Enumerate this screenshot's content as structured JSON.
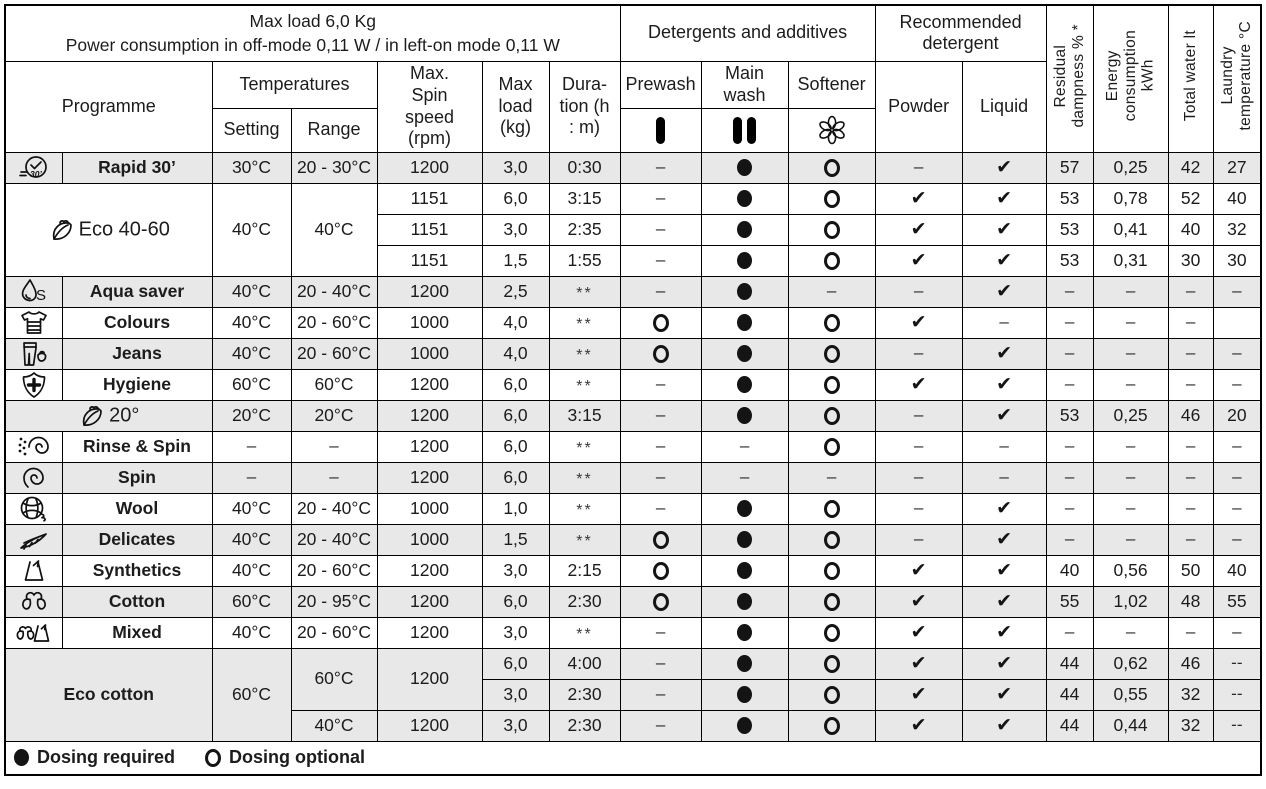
{
  "colors": {
    "row_shade": "#e8e8e8",
    "border": "#000000",
    "text": "#1c1c1c"
  },
  "header": {
    "note": "Max load 6,0 Kg\nPower consumption in off-mode 0,11 W / in left-on mode 0,11 W",
    "detergents_title": "Detergents and additives",
    "recommended_title": "Recommended\ndetergent",
    "programme": "Programme",
    "temperatures": "Temperatures",
    "setting": "Setting",
    "range": "Range",
    "spin": "Max.\nSpin\nspeed\n(rpm)",
    "load": "Max\nload\n(kg)",
    "duration": "Dura-\ntion (h\n: m)",
    "prewash": "Prewash",
    "mainwash": "Main\nwash",
    "softener": "Softener",
    "powder": "Powder",
    "liquid": "Liquid",
    "residual": "Residual\ndampness % *",
    "energy": "Energy\nconsumption\nkWh",
    "water": "Total water lt",
    "laundry": "Laundry\ntemperature °C"
  },
  "legend": {
    "required": "Dosing required",
    "optional": "Dosing optional"
  },
  "table": {
    "rows": [
      {
        "shaded": true,
        "cells": [
          {
            "icon": "rapid-30-clock-icon"
          },
          {
            "t": "Rapid 30’",
            "b": 1
          },
          {
            "t": "30°C"
          },
          {
            "t": "20 - 30°C"
          },
          {
            "t": "1200"
          },
          {
            "t": "3,0"
          },
          {
            "t": "0:30"
          },
          {
            "s": "dash"
          },
          {
            "s": "dot"
          },
          {
            "s": "circle"
          },
          {
            "s": "dash"
          },
          {
            "s": "check"
          },
          {
            "t": "57"
          },
          {
            "t": "0,25"
          },
          {
            "t": "42"
          },
          {
            "t": "27"
          }
        ]
      },
      {
        "shaded": false,
        "cells": [
          {
            "t": "Eco 40-60",
            "icon": "eco-leaf-icon",
            "cs": 2,
            "rs": 3
          },
          {
            "t": "40°C",
            "rs": 3
          },
          {
            "t": "40°C",
            "rs": 3
          },
          {
            "t": "1151"
          },
          {
            "t": "6,0"
          },
          {
            "t": "3:15"
          },
          {
            "s": "dash"
          },
          {
            "s": "dot"
          },
          {
            "s": "circle"
          },
          {
            "s": "check"
          },
          {
            "s": "check"
          },
          {
            "t": "53"
          },
          {
            "t": "0,78"
          },
          {
            "t": "52"
          },
          {
            "t": "40"
          }
        ]
      },
      {
        "shaded": false,
        "cells": [
          {
            "t": "1151"
          },
          {
            "t": "3,0"
          },
          {
            "t": "2:35"
          },
          {
            "s": "dash"
          },
          {
            "s": "dot"
          },
          {
            "s": "circle"
          },
          {
            "s": "check"
          },
          {
            "s": "check"
          },
          {
            "t": "53"
          },
          {
            "t": "0,41"
          },
          {
            "t": "40"
          },
          {
            "t": "32"
          }
        ]
      },
      {
        "shaded": false,
        "cells": [
          {
            "t": "1151"
          },
          {
            "t": "1,5"
          },
          {
            "t": "1:55"
          },
          {
            "s": "dash"
          },
          {
            "s": "dot"
          },
          {
            "s": "circle"
          },
          {
            "s": "check"
          },
          {
            "s": "check"
          },
          {
            "t": "53"
          },
          {
            "t": "0,31"
          },
          {
            "t": "30"
          },
          {
            "t": "30"
          }
        ]
      },
      {
        "shaded": true,
        "cells": [
          {
            "icon": "aqua-saver-drop-icon"
          },
          {
            "t": "Aqua saver",
            "b": 1
          },
          {
            "t": "40°C"
          },
          {
            "t": "20 - 40°C"
          },
          {
            "t": "1200"
          },
          {
            "t": "2,5"
          },
          {
            "s": "stars"
          },
          {
            "s": "dash"
          },
          {
            "s": "dot"
          },
          {
            "s": "dash"
          },
          {
            "s": "dash"
          },
          {
            "s": "check"
          },
          {
            "s": "dash"
          },
          {
            "s": "dash"
          },
          {
            "s": "dash"
          },
          {
            "s": "dash"
          }
        ]
      },
      {
        "shaded": false,
        "cells": [
          {
            "icon": "colours-tshirt-icon"
          },
          {
            "t": "Colours",
            "b": 1
          },
          {
            "t": "40°C"
          },
          {
            "t": "20 - 60°C"
          },
          {
            "t": "1000"
          },
          {
            "t": "4,0"
          },
          {
            "s": "stars"
          },
          {
            "s": "circle"
          },
          {
            "s": "dot"
          },
          {
            "s": "circle"
          },
          {
            "s": "check"
          },
          {
            "s": "dash"
          },
          {
            "s": "dash"
          },
          {
            "s": "dash"
          },
          {
            "s": "dash"
          },
          {
            "t": ""
          }
        ]
      },
      {
        "shaded": true,
        "cells": [
          {
            "icon": "jeans-icon"
          },
          {
            "t": "Jeans",
            "b": 1
          },
          {
            "t": "40°C"
          },
          {
            "t": "20 - 60°C"
          },
          {
            "t": "1000"
          },
          {
            "t": "4,0"
          },
          {
            "s": "stars"
          },
          {
            "s": "circle"
          },
          {
            "s": "dot"
          },
          {
            "s": "circle"
          },
          {
            "s": "dash"
          },
          {
            "s": "check"
          },
          {
            "s": "dash"
          },
          {
            "s": "dash"
          },
          {
            "s": "dash"
          },
          {
            "s": "dash"
          }
        ]
      },
      {
        "shaded": false,
        "cells": [
          {
            "icon": "hygiene-shield-icon"
          },
          {
            "t": "Hygiene",
            "b": 1
          },
          {
            "t": "60°C"
          },
          {
            "t": "60°C"
          },
          {
            "t": "1200"
          },
          {
            "t": "6,0"
          },
          {
            "s": "stars"
          },
          {
            "s": "dash"
          },
          {
            "s": "dot"
          },
          {
            "s": "circle"
          },
          {
            "s": "check"
          },
          {
            "s": "check"
          },
          {
            "s": "dash"
          },
          {
            "s": "dash"
          },
          {
            "s": "dash"
          },
          {
            "s": "dash"
          }
        ]
      },
      {
        "shaded": true,
        "cells": [
          {
            "t": "20°",
            "icon": "eco-leaf-icon",
            "cs": 2
          },
          {
            "t": "20°C"
          },
          {
            "t": "20°C"
          },
          {
            "t": "1200"
          },
          {
            "t": "6,0"
          },
          {
            "t": "3:15"
          },
          {
            "s": "dash"
          },
          {
            "s": "dot"
          },
          {
            "s": "circle"
          },
          {
            "s": "dash"
          },
          {
            "s": "check"
          },
          {
            "t": "53"
          },
          {
            "t": "0,25"
          },
          {
            "t": "46"
          },
          {
            "t": "20"
          }
        ]
      },
      {
        "shaded": false,
        "cells": [
          {
            "icon": "rinse-spin-icon"
          },
          {
            "t": "Rinse & Spin",
            "b": 1
          },
          {
            "s": "dash"
          },
          {
            "s": "dash"
          },
          {
            "t": "1200"
          },
          {
            "t": "6,0"
          },
          {
            "s": "stars"
          },
          {
            "s": "dash"
          },
          {
            "s": "dash"
          },
          {
            "s": "circle"
          },
          {
            "s": "dash"
          },
          {
            "s": "dash"
          },
          {
            "s": "dash"
          },
          {
            "s": "dash"
          },
          {
            "s": "dash"
          },
          {
            "s": "dash"
          }
        ]
      },
      {
        "shaded": true,
        "cells": [
          {
            "icon": "spin-spiral-icon"
          },
          {
            "t": "Spin",
            "b": 1
          },
          {
            "s": "dash"
          },
          {
            "s": "dash"
          },
          {
            "t": "1200"
          },
          {
            "t": "6,0"
          },
          {
            "s": "stars"
          },
          {
            "s": "dash"
          },
          {
            "s": "dash"
          },
          {
            "s": "dash"
          },
          {
            "s": "dash"
          },
          {
            "s": "dash"
          },
          {
            "s": "dash"
          },
          {
            "s": "dash"
          },
          {
            "s": "dash"
          },
          {
            "s": "dash"
          }
        ]
      },
      {
        "shaded": false,
        "cells": [
          {
            "icon": "wool-yarn-icon"
          },
          {
            "t": "Wool",
            "b": 1
          },
          {
            "t": "40°C"
          },
          {
            "t": "20 - 40°C"
          },
          {
            "t": "1000"
          },
          {
            "t": "1,0"
          },
          {
            "s": "stars"
          },
          {
            "s": "dash"
          },
          {
            "s": "dot"
          },
          {
            "s": "circle"
          },
          {
            "s": "dash"
          },
          {
            "s": "check"
          },
          {
            "s": "dash"
          },
          {
            "s": "dash"
          },
          {
            "s": "dash"
          },
          {
            "s": "dash"
          }
        ]
      },
      {
        "shaded": true,
        "cells": [
          {
            "icon": "delicates-feather-icon"
          },
          {
            "t": "Delicates",
            "b": 1
          },
          {
            "t": "40°C"
          },
          {
            "t": "20 - 40°C"
          },
          {
            "t": "1000"
          },
          {
            "t": "1,5"
          },
          {
            "s": "stars"
          },
          {
            "s": "circle"
          },
          {
            "s": "dot"
          },
          {
            "s": "circle"
          },
          {
            "s": "dash"
          },
          {
            "s": "check"
          },
          {
            "s": "dash"
          },
          {
            "s": "dash"
          },
          {
            "s": "dash"
          },
          {
            "s": "dash"
          }
        ]
      },
      {
        "shaded": false,
        "cells": [
          {
            "icon": "synthetics-icon"
          },
          {
            "t": "Synthetics",
            "b": 1
          },
          {
            "t": "40°C"
          },
          {
            "t": "20 - 60°C"
          },
          {
            "t": "1200"
          },
          {
            "t": "3,0"
          },
          {
            "t": "2:15"
          },
          {
            "s": "circle"
          },
          {
            "s": "dot"
          },
          {
            "s": "circle"
          },
          {
            "s": "check"
          },
          {
            "s": "check"
          },
          {
            "t": "40"
          },
          {
            "t": "0,56"
          },
          {
            "t": "50"
          },
          {
            "t": "40"
          }
        ]
      },
      {
        "shaded": true,
        "cells": [
          {
            "icon": "cotton-boll-icon"
          },
          {
            "t": "Cotton",
            "b": 1
          },
          {
            "t": "60°C"
          },
          {
            "t": "20 - 95°C"
          },
          {
            "t": "1200"
          },
          {
            "t": "6,0"
          },
          {
            "t": "2:30"
          },
          {
            "s": "circle"
          },
          {
            "s": "dot"
          },
          {
            "s": "circle"
          },
          {
            "s": "check"
          },
          {
            "s": "check"
          },
          {
            "t": "55"
          },
          {
            "t": "1,02"
          },
          {
            "t": "48"
          },
          {
            "t": "55"
          }
        ]
      },
      {
        "shaded": false,
        "cells": [
          {
            "icon": "mixed-icon"
          },
          {
            "t": "Mixed",
            "b": 1
          },
          {
            "t": "40°C"
          },
          {
            "t": "20 - 60°C"
          },
          {
            "t": "1200"
          },
          {
            "t": "3,0"
          },
          {
            "s": "stars"
          },
          {
            "s": "dash"
          },
          {
            "s": "dot"
          },
          {
            "s": "circle"
          },
          {
            "s": "check"
          },
          {
            "s": "check"
          },
          {
            "s": "dash"
          },
          {
            "s": "dash"
          },
          {
            "s": "dash"
          },
          {
            "s": "dash"
          }
        ]
      },
      {
        "shaded": true,
        "cells": [
          {
            "t": "Eco cotton",
            "b": 1,
            "cs": 2,
            "rs": 3
          },
          {
            "t": "60°C",
            "rs": 3
          },
          {
            "t": "60°C",
            "rs": 2
          },
          {
            "t": "1200",
            "rs": 2
          },
          {
            "t": "6,0"
          },
          {
            "t": "4:00"
          },
          {
            "s": "dash"
          },
          {
            "s": "dot"
          },
          {
            "s": "circle"
          },
          {
            "s": "check"
          },
          {
            "s": "check"
          },
          {
            "t": "44"
          },
          {
            "t": "0,62"
          },
          {
            "t": "46"
          },
          {
            "s": "ddash"
          }
        ]
      },
      {
        "shaded": true,
        "cells": [
          {
            "t": "3,0"
          },
          {
            "t": "2:30"
          },
          {
            "s": "dash"
          },
          {
            "s": "dot"
          },
          {
            "s": "circle"
          },
          {
            "s": "check"
          },
          {
            "s": "check"
          },
          {
            "t": "44"
          },
          {
            "t": "0,55"
          },
          {
            "t": "32"
          },
          {
            "s": "ddash"
          }
        ]
      },
      {
        "shaded": true,
        "cells": [
          {
            "t": "40°C"
          },
          {
            "t": "1200"
          },
          {
            "t": "3,0"
          },
          {
            "t": "2:30"
          },
          {
            "s": "dash"
          },
          {
            "s": "dot"
          },
          {
            "s": "circle"
          },
          {
            "s": "check"
          },
          {
            "s": "check"
          },
          {
            "t": "44"
          },
          {
            "t": "0,44"
          },
          {
            "t": "32"
          },
          {
            "s": "ddash"
          }
        ]
      }
    ]
  }
}
